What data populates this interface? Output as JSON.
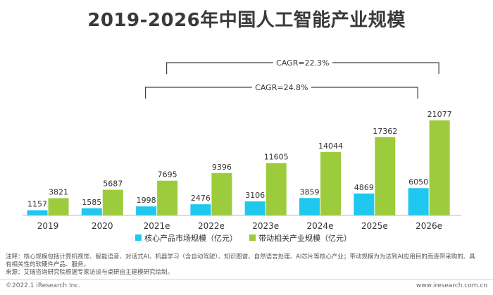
{
  "chart_data": {
    "type": "bar",
    "title": "2019-2026年中国人工智能产业规模",
    "categories": [
      "2019",
      "2020",
      "2021e",
      "2022e",
      "2023e",
      "2024e",
      "2025e",
      "2026e"
    ],
    "series": [
      {
        "name": "核心产品市场规模（亿元）",
        "color": "#1ec8ee",
        "values": [
          1157,
          1585,
          1998,
          2476,
          3106,
          3859,
          4869,
          6050
        ]
      },
      {
        "name": "带动相关产业规模（亿元）",
        "color": "#9ccc3b",
        "values": [
          3821,
          5687,
          7695,
          9396,
          11605,
          14044,
          17362,
          21077
        ]
      }
    ],
    "annotations": [
      {
        "text": "CAGR=22.3%",
        "from": "2021e",
        "to": "2026e"
      },
      {
        "text": "CAGR=24.8%",
        "from": "2021e",
        "to": "2026e"
      }
    ],
    "legend_position": "bottom",
    "grid": false
  },
  "notes": {
    "note_line1": "注释：核心规模包括计算机视觉、智能语音、对话式AI、机器学习（含自动驾驶）、知识图谱、自然语言处理、AI芯片等核心产业；带动规模为为达到AI应用目的而连带采购的、具",
    "note_line2": "有相关性的软硬件产品、服务。",
    "source": "来源：艾瑞咨询研究院根据专家访谈与桌研自主建模研究绘制。"
  },
  "footer": {
    "left": "©2022.1 iResearch Inc.",
    "right": "www.iresearch.com.cn"
  }
}
